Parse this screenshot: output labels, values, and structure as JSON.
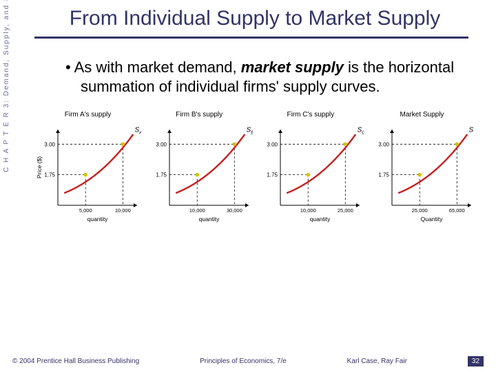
{
  "side_label": "C H A P T E R  3:  Demand, Supply, and Market Equilibrium",
  "title": "From Individual Supply to Market Supply",
  "bullet": {
    "dot": "•",
    "pre": "As with market demand, ",
    "emph": "market supply",
    "post": " is the horizontal summation of individual firms' supply curves."
  },
  "axis": {
    "ylabel": "Price ($)",
    "xlabel_firm": "quantity",
    "xlabel_market": "Quantity",
    "yticks": [
      1.75,
      3.0
    ],
    "curve_color": "#c81e1e",
    "dot_color": "#d4c400",
    "grid_dash": "3,3"
  },
  "charts": [
    {
      "title": "Firm A's supply",
      "series_label": "S",
      "series_sub": "A",
      "xticks": [
        "5,000",
        "10,000"
      ]
    },
    {
      "title": "Firm B's supply",
      "series_label": "S",
      "series_sub": "B",
      "xticks": [
        "10,000",
        "30,000"
      ]
    },
    {
      "title": "Firm C's supply",
      "series_label": "S",
      "series_sub": "C",
      "xticks": [
        "10,000",
        "25,000"
      ]
    },
    {
      "title": "Market Supply",
      "series_label": "S",
      "series_sub": "",
      "xticks": [
        "25,000",
        "65,000"
      ]
    }
  ],
  "footer": {
    "left": "© 2004 Prentice Hall Business Publishing",
    "mid": "Principles of Economics, 7/e",
    "right": "Karl Case, Ray Fair",
    "page": "32"
  }
}
